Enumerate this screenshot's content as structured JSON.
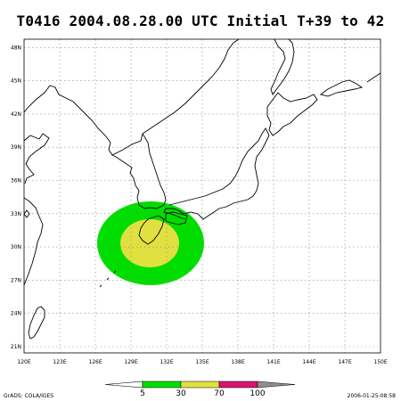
{
  "title": "T0416 2004.08.28.00 UTC Initial T+39 to 42",
  "lat_ticks": [
    "21N",
    "24N",
    "27N",
    "30N",
    "33N",
    "36N",
    "39N",
    "42N",
    "45N",
    "48N"
  ],
  "lon_ticks": [
    "120E",
    "123E",
    "126E",
    "129E",
    "132E",
    "135E",
    "138E",
    "141E",
    "144E",
    "147E",
    "150E"
  ],
  "legend": {
    "labels": [
      "5",
      "30",
      "70",
      "100"
    ],
    "colors": [
      "#00dd00",
      "#e0e040",
      "#d81470",
      "#909090"
    ]
  },
  "probability_area": {
    "outer_color": "#00dd00",
    "inner_color": "#e0e040"
  },
  "footer_left": "GrADS: COLA/IGES",
  "footer_right": "2006-01-25-08:58"
}
